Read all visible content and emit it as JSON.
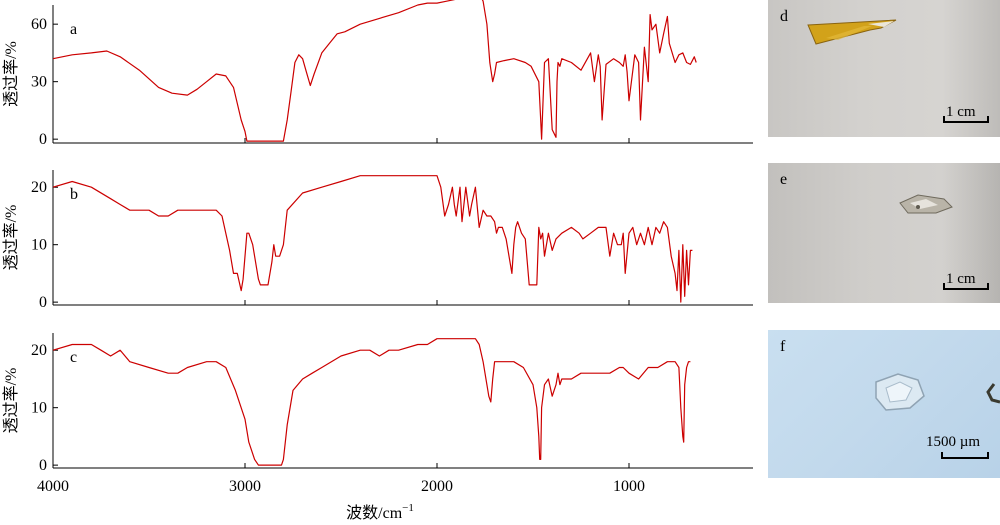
{
  "chart_data": [
    {
      "type": "line",
      "panel": "a",
      "ylabel": "透过率/%",
      "yticks": [
        0,
        30,
        60
      ],
      "xlim": [
        4000,
        400
      ],
      "ylim": [
        -2,
        70
      ],
      "series_color": "#cc0000",
      "x": [
        4000,
        3900,
        3800,
        3720,
        3650,
        3550,
        3450,
        3380,
        3300,
        3250,
        3200,
        3150,
        3100,
        3060,
        3020,
        3000,
        2990,
        2960,
        2930,
        2900,
        2870,
        2850,
        2830,
        2800,
        2780,
        2760,
        2740,
        2720,
        2700,
        2680,
        2660,
        2640,
        2600,
        2560,
        2520,
        2480,
        2400,
        2300,
        2200,
        2100,
        2050,
        2000,
        1950,
        1900,
        1850,
        1800,
        1770,
        1760,
        1740,
        1725,
        1710,
        1700,
        1690,
        1650,
        1600,
        1540,
        1510,
        1470,
        1460,
        1455,
        1440,
        1420,
        1400,
        1380,
        1375,
        1370,
        1360,
        1350,
        1300,
        1250,
        1200,
        1180,
        1160,
        1150,
        1140,
        1120,
        1080,
        1050,
        1030,
        1020,
        1010,
        1000,
        970,
        950,
        940,
        920,
        900,
        890,
        880,
        860,
        840,
        820,
        800,
        790,
        760,
        740,
        720,
        700,
        680,
        660,
        650
      ],
      "y": [
        42,
        44,
        45,
        46,
        43,
        36,
        27,
        24,
        23,
        26,
        30,
        34,
        33,
        27,
        10,
        4,
        -1,
        -1,
        -1,
        -1,
        -1,
        -1,
        -1,
        -1,
        10,
        25,
        40,
        44,
        42,
        35,
        28,
        34,
        45,
        50,
        55,
        56,
        60,
        63,
        66,
        70,
        71,
        71,
        72,
        73,
        73,
        73,
        74,
        72,
        60,
        40,
        30,
        34,
        40,
        41,
        42,
        40,
        38,
        30,
        10,
        0,
        40,
        42,
        5,
        1,
        30,
        40,
        38,
        42,
        40,
        36,
        45,
        30,
        44,
        38,
        10,
        39,
        42,
        40,
        38,
        44,
        35,
        20,
        44,
        40,
        10,
        48,
        30,
        65,
        57,
        60,
        45,
        55,
        64,
        50,
        40,
        44,
        45,
        40,
        39,
        43,
        40
      ]
    },
    {
      "type": "line",
      "panel": "b",
      "ylabel": "透过率/%",
      "yticks": [
        0,
        10,
        20
      ],
      "xlim": [
        4000,
        400
      ],
      "ylim": [
        -0.5,
        23
      ],
      "series_color": "#cc0000",
      "x": [
        4000,
        3900,
        3800,
        3700,
        3650,
        3600,
        3500,
        3450,
        3400,
        3350,
        3300,
        3200,
        3150,
        3120,
        3100,
        3080,
        3060,
        3040,
        3020,
        3010,
        3000,
        2990,
        2980,
        2960,
        2950,
        2940,
        2930,
        2920,
        2900,
        2880,
        2860,
        2850,
        2840,
        2820,
        2800,
        2780,
        2700,
        2600,
        2500,
        2400,
        2300,
        2200,
        2100,
        2050,
        2000,
        1980,
        1960,
        1940,
        1920,
        1910,
        1900,
        1880,
        1870,
        1860,
        1850,
        1830,
        1820,
        1800,
        1780,
        1760,
        1740,
        1720,
        1700,
        1690,
        1680,
        1660,
        1640,
        1610,
        1600,
        1590,
        1580,
        1560,
        1540,
        1520,
        1480,
        1470,
        1460,
        1450,
        1440,
        1420,
        1400,
        1380,
        1350,
        1300,
        1260,
        1240,
        1200,
        1160,
        1120,
        1100,
        1080,
        1060,
        1040,
        1030,
        1020,
        1000,
        980,
        960,
        940,
        920,
        900,
        880,
        860,
        840,
        820,
        800,
        780,
        760,
        750,
        740,
        730,
        720,
        710,
        700,
        690,
        680,
        670
      ],
      "y": [
        20,
        21,
        20,
        18,
        17,
        16,
        16,
        15,
        15,
        16,
        16,
        16,
        16,
        15,
        12,
        9,
        5,
        5,
        2,
        4,
        8,
        12,
        12,
        10,
        8,
        6,
        4,
        3,
        3,
        3,
        7,
        10,
        8,
        8,
        10,
        16,
        19,
        20,
        21,
        22,
        22,
        22,
        22,
        22,
        22,
        20,
        15,
        17,
        20,
        17,
        15,
        20,
        14,
        17,
        20,
        15,
        17,
        20,
        13,
        16,
        15,
        15,
        14,
        12,
        13,
        13,
        11,
        5,
        10,
        13,
        14,
        12,
        11,
        3,
        3,
        13,
        11,
        12,
        8,
        12,
        9,
        11,
        12,
        13,
        12,
        11,
        12,
        13,
        13,
        8,
        12,
        10,
        10,
        12,
        5,
        12,
        13,
        10,
        12,
        10,
        13,
        10,
        13,
        12,
        14,
        13,
        8,
        5,
        2,
        9,
        0,
        10,
        1,
        9,
        3,
        9,
        9
      ]
    },
    {
      "type": "line",
      "panel": "c",
      "ylabel": "透过率/%",
      "yticks": [
        0,
        10,
        20
      ],
      "xlim": [
        4000,
        400
      ],
      "ylim": [
        -0.5,
        23
      ],
      "series_color": "#cc0000",
      "x": [
        4000,
        3900,
        3800,
        3750,
        3700,
        3650,
        3600,
        3500,
        3400,
        3350,
        3300,
        3200,
        3150,
        3100,
        3050,
        3000,
        2980,
        2950,
        2930,
        2900,
        2870,
        2850,
        2830,
        2810,
        2800,
        2780,
        2750,
        2700,
        2650,
        2600,
        2500,
        2400,
        2350,
        2300,
        2250,
        2200,
        2100,
        2050,
        2000,
        1950,
        1900,
        1850,
        1800,
        1780,
        1760,
        1740,
        1730,
        1720,
        1710,
        1700,
        1650,
        1600,
        1550,
        1500,
        1480,
        1470,
        1465,
        1460,
        1455,
        1440,
        1420,
        1400,
        1380,
        1370,
        1360,
        1350,
        1300,
        1250,
        1200,
        1150,
        1100,
        1050,
        1030,
        1000,
        950,
        900,
        850,
        800,
        760,
        740,
        730,
        720,
        715,
        710,
        700,
        690,
        680
      ],
      "y": [
        20,
        21,
        21,
        20,
        19,
        20,
        18,
        17,
        16,
        16,
        17,
        18,
        18,
        17,
        13,
        8,
        4,
        1,
        0,
        0,
        0,
        0,
        0,
        0,
        1,
        7,
        13,
        15,
        16,
        17,
        19,
        20,
        20,
        19,
        20,
        20,
        21,
        21,
        22,
        22,
        22,
        22,
        22,
        21,
        18,
        14,
        12,
        11,
        15,
        18,
        18,
        18,
        17,
        14,
        10,
        5,
        1,
        1,
        10,
        14,
        15,
        12,
        14,
        16,
        14,
        15,
        15,
        16,
        16,
        16,
        16,
        17,
        17,
        16,
        15,
        17,
        17,
        18,
        18,
        17,
        10,
        5,
        4,
        14,
        17,
        18,
        18
      ]
    }
  ],
  "x_axis": {
    "ticks": [
      4000,
      3000,
      2000,
      1000
    ],
    "label": "波数/cm",
    "label_sup": "−1"
  },
  "photos": [
    {
      "label": "d",
      "scale_text": "1 cm"
    },
    {
      "label": "e",
      "scale_text": "1 cm"
    },
    {
      "label": "f",
      "scale_text": "1500 µm"
    }
  ]
}
